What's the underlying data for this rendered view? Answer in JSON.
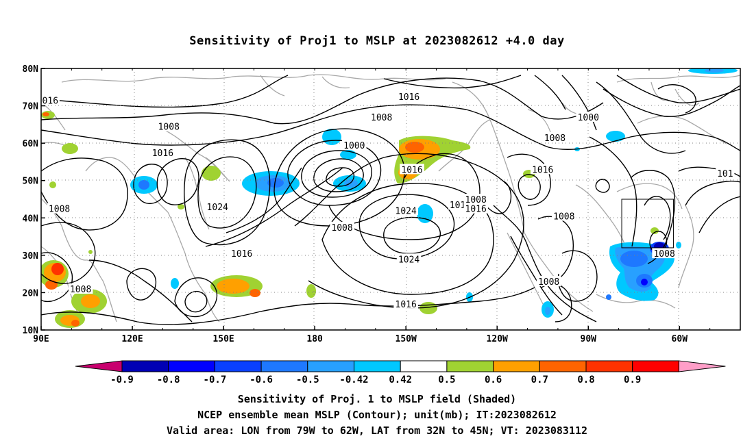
{
  "title": "Sensitivity of Proj1 to MSLP at 2023082612 +4.0 day",
  "map": {
    "lat_ticks": [
      "80N",
      "70N",
      "60N",
      "50N",
      "40N",
      "30N",
      "20N",
      "10N"
    ],
    "lon_ticks": [
      "90E",
      "120E",
      "150E",
      "180",
      "150W",
      "120W",
      "90W",
      "60W"
    ],
    "lon_range": [
      "90E",
      "40W"
    ],
    "lat_range": [
      "10N",
      "80N"
    ],
    "grid": "dotted",
    "contour_labels": [
      {
        "text": "016",
        "lon": 93,
        "lat": 71.5
      },
      {
        "text": "1016",
        "lon": -149,
        "lat": 72.5
      },
      {
        "text": "1000",
        "lon": -90,
        "lat": 67
      },
      {
        "text": "1008",
        "lon": 132,
        "lat": 64.5
      },
      {
        "text": "1008",
        "lon": -158,
        "lat": 67
      },
      {
        "text": "1000",
        "lon": -167,
        "lat": 59.5
      },
      {
        "text": "1008",
        "lon": -101,
        "lat": 61.5
      },
      {
        "text": "1016",
        "lon": 130,
        "lat": 57.5
      },
      {
        "text": "1016",
        "lon": -148,
        "lat": 53
      },
      {
        "text": "1016",
        "lon": -105,
        "lat": 53
      },
      {
        "text": "101",
        "lon": -45,
        "lat": 52
      },
      {
        "text": "1008",
        "lon": 96,
        "lat": 42.5
      },
      {
        "text": "1024",
        "lon": 148,
        "lat": 43
      },
      {
        "text": "1024",
        "lon": -150,
        "lat": 42
      },
      {
        "text": "101",
        "lon": -133,
        "lat": 43.5
      },
      {
        "text": "1008",
        "lon": -127,
        "lat": 45
      },
      {
        "text": "1016",
        "lon": -127,
        "lat": 42.5
      },
      {
        "text": "1008",
        "lon": -98,
        "lat": 40.5
      },
      {
        "text": "1008",
        "lon": -65,
        "lat": 30.5
      },
      {
        "text": "1008",
        "lon": -171,
        "lat": 37.5
      },
      {
        "text": "1016",
        "lon": 156,
        "lat": 30.5
      },
      {
        "text": "1024",
        "lon": -149,
        "lat": 29
      },
      {
        "text": "1008",
        "lon": -103,
        "lat": 23
      },
      {
        "text": "1008",
        "lon": 103,
        "lat": 21
      },
      {
        "text": "1016",
        "lon": -150,
        "lat": 17
      }
    ],
    "valid_box": {
      "lon_min": -79,
      "lon_max": -62,
      "lat_min": 32,
      "lat_max": 45
    }
  },
  "legend": {
    "labels": [
      "-0.9",
      "-0.8",
      "-0.7",
      "-0.6",
      "-0.5",
      "-0.42",
      "0.42",
      "0.5",
      "0.6",
      "0.7",
      "0.8",
      "0.9"
    ],
    "colors": [
      "#0000b4",
      "#0000ff",
      "#0a40ff",
      "#1e78ff",
      "#28a0ff",
      "#00c8ff",
      "#ffffff",
      "#a0d232",
      "#ffa000",
      "#ff6400",
      "#ff3200",
      "#ff0000"
    ],
    "under_color": "#c8006e",
    "over_color": "#ff9ec8"
  },
  "captions": {
    "line1": "Sensitivity of Proj. 1 to MSLP field (Shaded)",
    "line2": "NCEP ensemble mean MSLP (Contour); unit(mb); IT:2023082612",
    "line3": "Valid area: LON from 79W to 62W, LAT from 32N to 45N; VT: 2023083112"
  }
}
